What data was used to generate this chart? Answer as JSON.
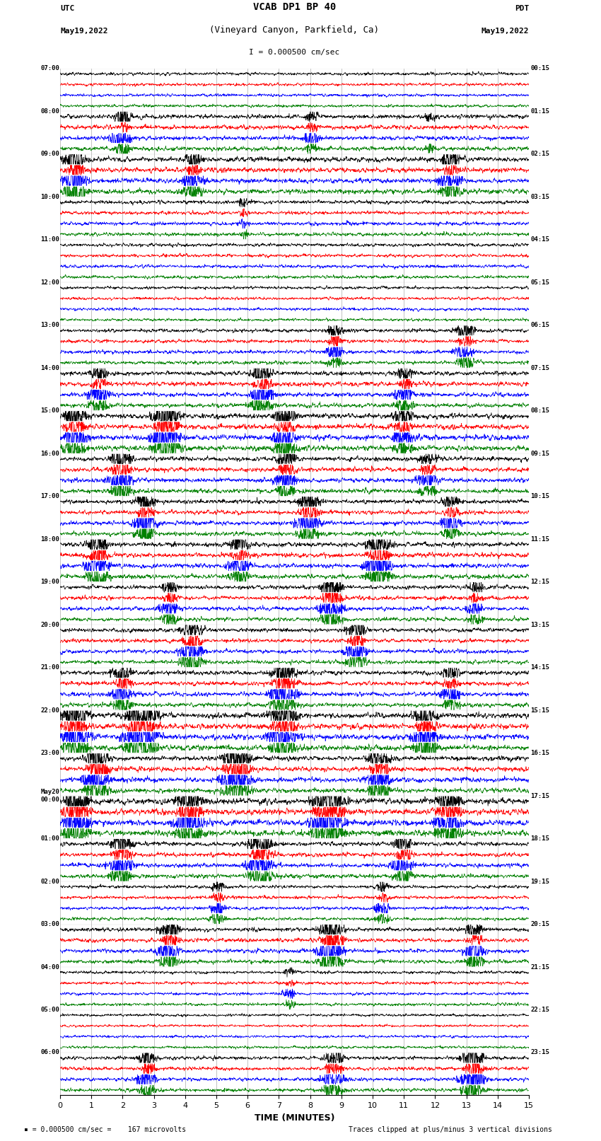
{
  "title_line1": "VCAB DP1 BP 40",
  "title_line2": "(Vineyard Canyon, Parkfield, Ca)",
  "scale_label": "I = 0.000500 cm/sec",
  "footer_left": "= 0.000500 cm/sec =    167 microvolts",
  "footer_right": "Traces clipped at plus/minus 3 vertical divisions",
  "utc_label": "UTC",
  "utc_date": "May19,2022",
  "pdt_label": "PDT",
  "pdt_date": "May19,2022",
  "xlabel": "TIME (MINUTES)",
  "left_times": [
    "07:00",
    "08:00",
    "09:00",
    "10:00",
    "11:00",
    "12:00",
    "13:00",
    "14:00",
    "15:00",
    "16:00",
    "17:00",
    "18:00",
    "19:00",
    "20:00",
    "21:00",
    "22:00",
    "23:00",
    "May20\n00:00",
    "01:00",
    "02:00",
    "03:00",
    "04:00",
    "05:00",
    "06:00"
  ],
  "right_times": [
    "00:15",
    "01:15",
    "02:15",
    "03:15",
    "04:15",
    "05:15",
    "06:15",
    "07:15",
    "08:15",
    "09:15",
    "10:15",
    "11:15",
    "12:15",
    "13:15",
    "14:15",
    "15:15",
    "16:15",
    "17:15",
    "18:15",
    "19:15",
    "20:15",
    "21:15",
    "22:15",
    "23:15"
  ],
  "colors": [
    "#000000",
    "#ff0000",
    "#0000ff",
    "#008000"
  ],
  "num_rows": 24,
  "traces_per_row": 4,
  "x_min": 0,
  "x_max": 15,
  "bg_color": "#ffffff",
  "grid_color": "#888888",
  "fig_width": 8.5,
  "fig_height": 16.13,
  "dpi": 100
}
